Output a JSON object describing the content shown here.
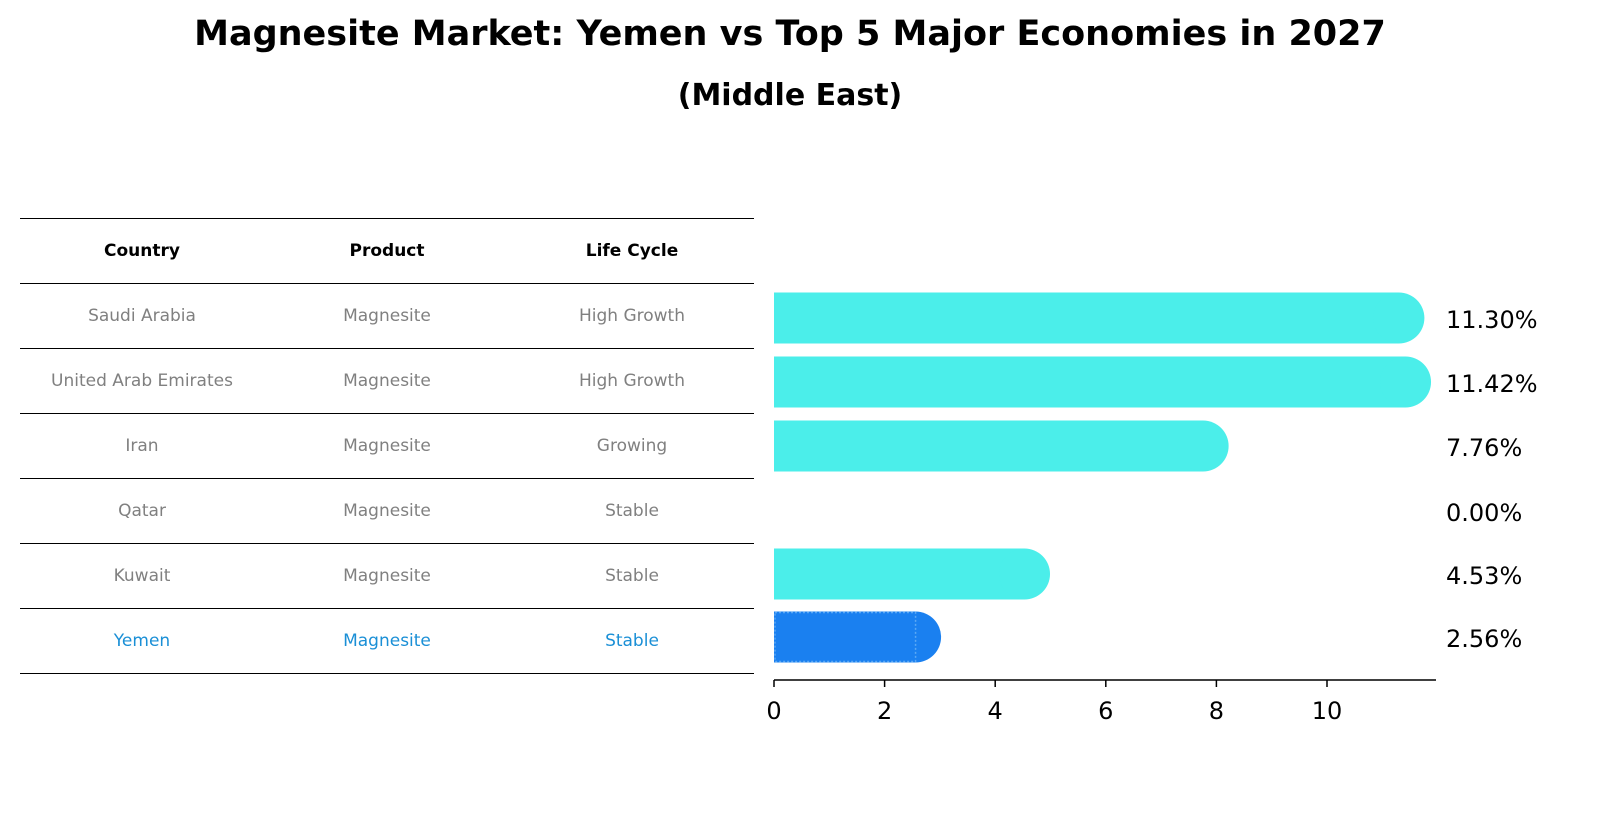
{
  "title": "Magnesite Market: Yemen vs Top 5 Major Economies in 2027",
  "subtitle": "(Middle East)",
  "table": {
    "headers": [
      "Country",
      "Product",
      "Life Cycle"
    ],
    "rows": [
      [
        "Saudi Arabia",
        "Magnesite",
        "High Growth"
      ],
      [
        "United Arab Emirates",
        "Magnesite",
        "High Growth"
      ],
      [
        "Iran",
        "Magnesite",
        "Growing"
      ],
      [
        "Qatar",
        "Magnesite",
        "Stable"
      ],
      [
        "Kuwait",
        "Magnesite",
        "Stable"
      ],
      [
        "Yemen",
        "Magnesite",
        "Stable"
      ]
    ]
  },
  "chart_data": {
    "type": "bar",
    "orientation": "horizontal",
    "categories": [
      "Saudi Arabia",
      "United Arab Emirates",
      "Iran",
      "Qatar",
      "Kuwait",
      "Yemen"
    ],
    "values": [
      11.3,
      11.42,
      7.76,
      0.0,
      4.53,
      2.56
    ],
    "value_labels": [
      "11.30%",
      "11.42%",
      "7.76%",
      "0.00%",
      "4.53%",
      "2.56%"
    ],
    "highlight": "Yemen",
    "xlim": [
      0,
      12
    ],
    "xticks": [
      0,
      2,
      4,
      6,
      8,
      10
    ],
    "colors": {
      "default": "#4beeea",
      "highlight": "#1a80f0"
    }
  }
}
